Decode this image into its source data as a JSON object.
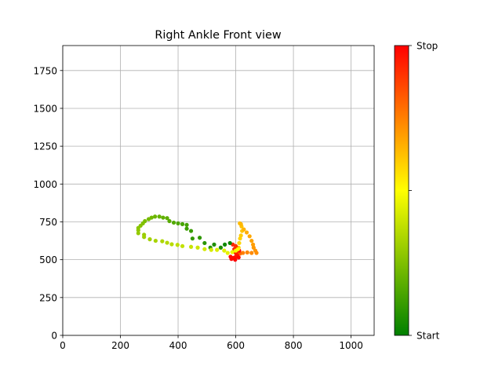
{
  "chart_data": {
    "type": "scatter",
    "title": "Right Ankle Front view",
    "xlabel": "",
    "ylabel": "",
    "xlim": [
      0,
      1080
    ],
    "ylim": [
      0,
      1915
    ],
    "xticks": [
      0,
      200,
      400,
      600,
      800,
      1000
    ],
    "yticks": [
      0,
      250,
      500,
      750,
      1000,
      1250,
      1500,
      1750
    ],
    "grid": true,
    "colorbar": {
      "labels": [
        "Start",
        "Stop"
      ],
      "colors": [
        "#008000",
        "#ffff00",
        "#ff0000"
      ],
      "colormap": "green-yellow-red",
      "middle_tick": true
    },
    "points": [
      {
        "x": 600,
        "y": 545,
        "t": 0.55
      },
      {
        "x": 605,
        "y": 560,
        "t": 0.56
      },
      {
        "x": 610,
        "y": 580,
        "t": 0.57
      },
      {
        "x": 612,
        "y": 610,
        "t": 0.58
      },
      {
        "x": 615,
        "y": 640,
        "t": 0.59
      },
      {
        "x": 618,
        "y": 660,
        "t": 0.6
      },
      {
        "x": 622,
        "y": 690,
        "t": 0.61
      },
      {
        "x": 620,
        "y": 720,
        "t": 0.62
      },
      {
        "x": 614,
        "y": 740,
        "t": 0.63
      },
      {
        "x": 618,
        "y": 735,
        "t": 0.64
      },
      {
        "x": 628,
        "y": 700,
        "t": 0.65
      },
      {
        "x": 638,
        "y": 680,
        "t": 0.66
      },
      {
        "x": 648,
        "y": 655,
        "t": 0.67
      },
      {
        "x": 655,
        "y": 625,
        "t": 0.68
      },
      {
        "x": 660,
        "y": 600,
        "t": 0.69
      },
      {
        "x": 662,
        "y": 580,
        "t": 0.7
      },
      {
        "x": 668,
        "y": 560,
        "t": 0.71
      },
      {
        "x": 672,
        "y": 545,
        "t": 0.72
      },
      {
        "x": 655,
        "y": 545,
        "t": 0.73
      },
      {
        "x": 640,
        "y": 548,
        "t": 0.74
      },
      {
        "x": 625,
        "y": 545,
        "t": 0.75
      },
      {
        "x": 615,
        "y": 540,
        "t": 0.78
      },
      {
        "x": 612,
        "y": 550,
        "t": 0.82
      },
      {
        "x": 610,
        "y": 560,
        "t": 0.85
      },
      {
        "x": 605,
        "y": 575,
        "t": 0.88
      },
      {
        "x": 600,
        "y": 590,
        "t": 0.9
      },
      {
        "x": 590,
        "y": 600,
        "t": 0.92
      },
      {
        "x": 595,
        "y": 570,
        "t": 0.93
      },
      {
        "x": 600,
        "y": 545,
        "t": 0.95
      },
      {
        "x": 605,
        "y": 530,
        "t": 0.96
      },
      {
        "x": 600,
        "y": 520,
        "t": 0.97
      },
      {
        "x": 592,
        "y": 512,
        "t": 0.98
      },
      {
        "x": 585,
        "y": 505,
        "t": 0.99
      },
      {
        "x": 598,
        "y": 500,
        "t": 1.0
      },
      {
        "x": 610,
        "y": 515,
        "t": 0.995
      },
      {
        "x": 582,
        "y": 520,
        "t": 0.985
      },
      {
        "x": 612,
        "y": 560,
        "t": 0.975
      },
      {
        "x": 580,
        "y": 610,
        "t": 0.02
      },
      {
        "x": 562,
        "y": 600,
        "t": 0.03
      },
      {
        "x": 548,
        "y": 580,
        "t": 0.05
      },
      {
        "x": 525,
        "y": 600,
        "t": 0.06
      },
      {
        "x": 512,
        "y": 580,
        "t": 0.07
      },
      {
        "x": 492,
        "y": 610,
        "t": 0.08
      },
      {
        "x": 475,
        "y": 645,
        "t": 0.09
      },
      {
        "x": 450,
        "y": 640,
        "t": 0.1
      },
      {
        "x": 445,
        "y": 690,
        "t": 0.11
      },
      {
        "x": 430,
        "y": 705,
        "t": 0.12
      },
      {
        "x": 430,
        "y": 730,
        "t": 0.13
      },
      {
        "x": 415,
        "y": 735,
        "t": 0.14
      },
      {
        "x": 400,
        "y": 740,
        "t": 0.15
      },
      {
        "x": 385,
        "y": 745,
        "t": 0.16
      },
      {
        "x": 370,
        "y": 755,
        "t": 0.17
      },
      {
        "x": 362,
        "y": 775,
        "t": 0.18
      },
      {
        "x": 348,
        "y": 778,
        "t": 0.19
      },
      {
        "x": 335,
        "y": 785,
        "t": 0.2
      },
      {
        "x": 320,
        "y": 785,
        "t": 0.21
      },
      {
        "x": 308,
        "y": 778,
        "t": 0.22
      },
      {
        "x": 298,
        "y": 768,
        "t": 0.23
      },
      {
        "x": 285,
        "y": 755,
        "t": 0.24
      },
      {
        "x": 278,
        "y": 740,
        "t": 0.25
      },
      {
        "x": 270,
        "y": 725,
        "t": 0.26
      },
      {
        "x": 262,
        "y": 710,
        "t": 0.27
      },
      {
        "x": 262,
        "y": 695,
        "t": 0.28
      },
      {
        "x": 262,
        "y": 675,
        "t": 0.29
      },
      {
        "x": 282,
        "y": 665,
        "t": 0.3
      },
      {
        "x": 282,
        "y": 650,
        "t": 0.31
      },
      {
        "x": 302,
        "y": 635,
        "t": 0.32
      },
      {
        "x": 322,
        "y": 625,
        "t": 0.33
      },
      {
        "x": 345,
        "y": 622,
        "t": 0.34
      },
      {
        "x": 362,
        "y": 612,
        "t": 0.35
      },
      {
        "x": 378,
        "y": 602,
        "t": 0.36
      },
      {
        "x": 398,
        "y": 598,
        "t": 0.37
      },
      {
        "x": 415,
        "y": 590,
        "t": 0.38
      },
      {
        "x": 445,
        "y": 585,
        "t": 0.39
      },
      {
        "x": 468,
        "y": 580,
        "t": 0.4
      },
      {
        "x": 492,
        "y": 570,
        "t": 0.41
      },
      {
        "x": 515,
        "y": 565,
        "t": 0.42
      },
      {
        "x": 535,
        "y": 565,
        "t": 0.43
      },
      {
        "x": 560,
        "y": 560,
        "t": 0.44
      },
      {
        "x": 572,
        "y": 545,
        "t": 0.45
      },
      {
        "x": 588,
        "y": 550,
        "t": 0.46
      },
      {
        "x": 600,
        "y": 560,
        "t": 0.47
      },
      {
        "x": 608,
        "y": 570,
        "t": 0.5
      }
    ]
  }
}
